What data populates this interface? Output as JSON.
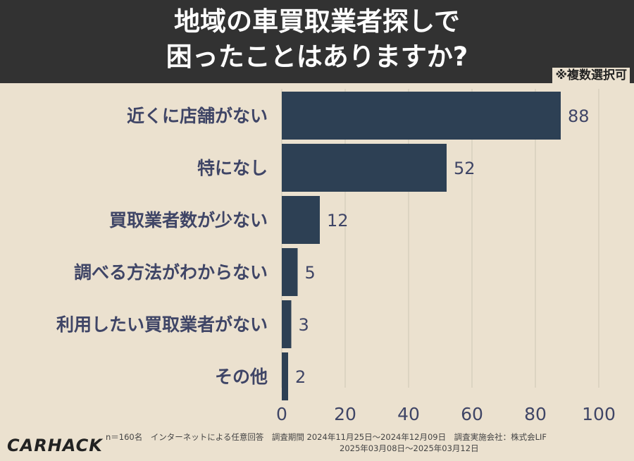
{
  "header": {
    "title_line1": "地域の車買取業者探しで",
    "title_line2": "困ったことはありますか?",
    "note": "※複数選択可"
  },
  "colors": {
    "bar": "#2d4054",
    "background": "#ebe1cf",
    "header_bg": "#323232",
    "label": "#3f4566",
    "grid": "#d8cfbe"
  },
  "chart_data": {
    "type": "bar",
    "orientation": "horizontal",
    "title": "地域の車買取業者探しで困ったことはありますか?",
    "categories": [
      "近くに店舗がない",
      "特になし",
      "買取業者数が少ない",
      "調べる方法がわからない",
      "利用したい買取業者がない",
      "その他"
    ],
    "values": [
      88,
      52,
      12,
      5,
      3,
      2
    ],
    "value_labels": [
      "88",
      "52",
      "12",
      "5",
      "3",
      "2"
    ],
    "xlim": [
      0,
      100
    ],
    "xticks": [
      0,
      20,
      40,
      60,
      80,
      100
    ],
    "xtick_labels": [
      "0",
      "20",
      "40",
      "60",
      "80",
      "100"
    ],
    "grid": true
  },
  "footer": {
    "logo": "CARHACK",
    "footnote_line1": "n＝160名　インターネットによる任意回答　調査期間  2024年11月25日〜2024年12月09日　調査実施会社：株式会LIF",
    "footnote_line2": "2025年03月08日〜2025年03月12日"
  }
}
